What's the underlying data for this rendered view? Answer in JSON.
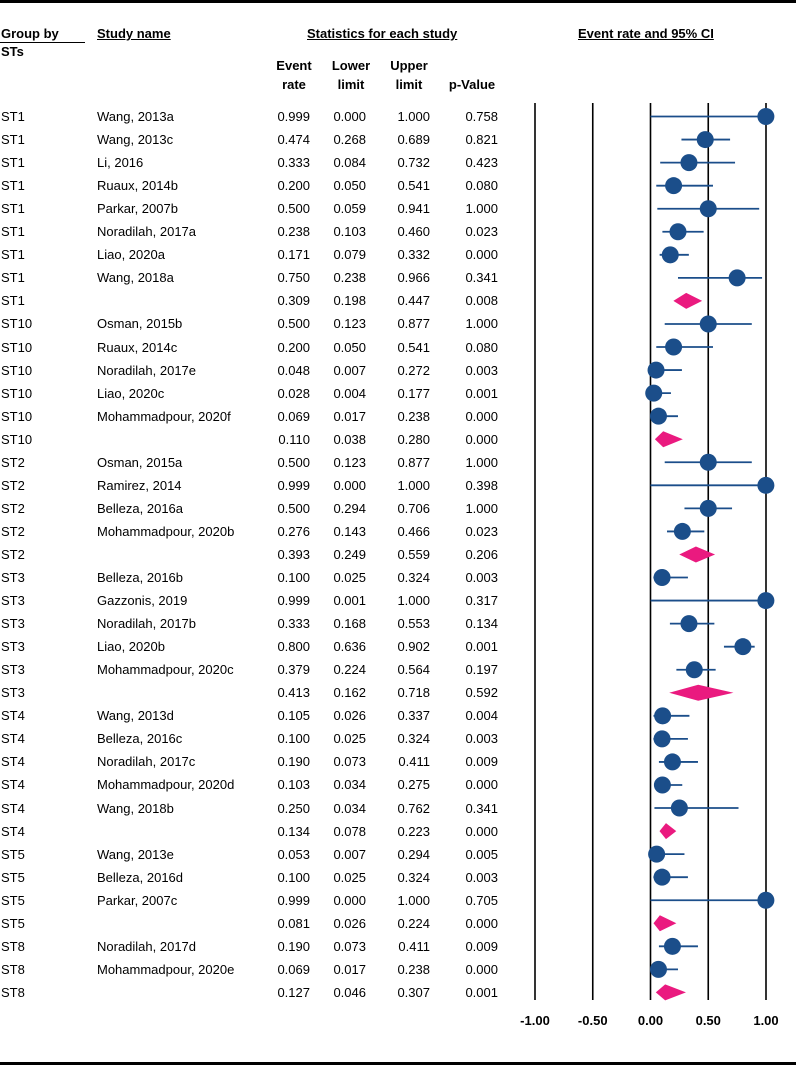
{
  "headers": {
    "group_by": "Group by",
    "group_by_2": "STs",
    "study_name": "Study name",
    "stats_group": "Statistics for each study",
    "plot_title": "Event rate and 95% CI",
    "col_event_1": "Event",
    "col_event_2": "rate",
    "col_lower_1": "Lower",
    "col_lower_2": "limit",
    "col_upper_1": "Upper",
    "col_upper_2": "limit",
    "col_p": "p-Value"
  },
  "chart_data": {
    "type": "forest",
    "title": "Event rate and 95% CI",
    "x_ticks": [
      "-1.00",
      "-0.50",
      "0.00",
      "0.50",
      "1.00"
    ],
    "xlim": [
      -1.0,
      1.0
    ],
    "vertical_lines_at": [
      -1.0,
      -0.5,
      0.0,
      0.5,
      1.0
    ],
    "colors": {
      "study_marker": "#1b4e8a",
      "summary_diamond": "#ea1a7f",
      "ci_line": "#1b4e8a"
    },
    "rows": [
      {
        "group": "ST1",
        "study": "Wang, 2013a",
        "rate": "0.999",
        "lower": "0.000",
        "upper": "1.000",
        "p": "0.758",
        "summary": false
      },
      {
        "group": "ST1",
        "study": "Wang, 2013c",
        "rate": "0.474",
        "lower": "0.268",
        "upper": "0.689",
        "p": "0.821",
        "summary": false
      },
      {
        "group": "ST1",
        "study": "Li, 2016",
        "rate": "0.333",
        "lower": "0.084",
        "upper": "0.732",
        "p": "0.423",
        "summary": false
      },
      {
        "group": "ST1",
        "study": "Ruaux, 2014b",
        "rate": "0.200",
        "lower": "0.050",
        "upper": "0.541",
        "p": "0.080",
        "summary": false
      },
      {
        "group": "ST1",
        "study": "Parkar, 2007b",
        "rate": "0.500",
        "lower": "0.059",
        "upper": "0.941",
        "p": "1.000",
        "summary": false
      },
      {
        "group": "ST1",
        "study": "Noradilah, 2017a",
        "rate": "0.238",
        "lower": "0.103",
        "upper": "0.460",
        "p": "0.023",
        "summary": false
      },
      {
        "group": "ST1",
        "study": "Liao, 2020a",
        "rate": "0.171",
        "lower": "0.079",
        "upper": "0.332",
        "p": "0.000",
        "summary": false
      },
      {
        "group": "ST1",
        "study": "Wang, 2018a",
        "rate": "0.750",
        "lower": "0.238",
        "upper": "0.966",
        "p": "0.341",
        "summary": false
      },
      {
        "group": "ST1",
        "study": "",
        "rate": "0.309",
        "lower": "0.198",
        "upper": "0.447",
        "p": "0.008",
        "summary": true
      },
      {
        "group": "ST10",
        "study": "Osman, 2015b",
        "rate": "0.500",
        "lower": "0.123",
        "upper": "0.877",
        "p": "1.000",
        "summary": false
      },
      {
        "group": "ST10",
        "study": "Ruaux, 2014c",
        "rate": "0.200",
        "lower": "0.050",
        "upper": "0.541",
        "p": "0.080",
        "summary": false
      },
      {
        "group": "ST10",
        "study": "Noradilah, 2017e",
        "rate": "0.048",
        "lower": "0.007",
        "upper": "0.272",
        "p": "0.003",
        "summary": false
      },
      {
        "group": "ST10",
        "study": "Liao, 2020c",
        "rate": "0.028",
        "lower": "0.004",
        "upper": "0.177",
        "p": "0.001",
        "summary": false
      },
      {
        "group": "ST10",
        "study": "Mohammadpour, 2020f",
        "rate": "0.069",
        "lower": "0.017",
        "upper": "0.238",
        "p": "0.000",
        "summary": false
      },
      {
        "group": "ST10",
        "study": "",
        "rate": "0.110",
        "lower": "0.038",
        "upper": "0.280",
        "p": "0.000",
        "summary": true
      },
      {
        "group": "ST2",
        "study": "Osman, 2015a",
        "rate": "0.500",
        "lower": "0.123",
        "upper": "0.877",
        "p": "1.000",
        "summary": false
      },
      {
        "group": "ST2",
        "study": "Ramirez, 2014",
        "rate": "0.999",
        "lower": "0.000",
        "upper": "1.000",
        "p": "0.398",
        "summary": false
      },
      {
        "group": "ST2",
        "study": "Belleza, 2016a",
        "rate": "0.500",
        "lower": "0.294",
        "upper": "0.706",
        "p": "1.000",
        "summary": false
      },
      {
        "group": "ST2",
        "study": "Mohammadpour, 2020b",
        "rate": "0.276",
        "lower": "0.143",
        "upper": "0.466",
        "p": "0.023",
        "summary": false
      },
      {
        "group": "ST2",
        "study": "",
        "rate": "0.393",
        "lower": "0.249",
        "upper": "0.559",
        "p": "0.206",
        "summary": true
      },
      {
        "group": "ST3",
        "study": "Belleza, 2016b",
        "rate": "0.100",
        "lower": "0.025",
        "upper": "0.324",
        "p": "0.003",
        "summary": false
      },
      {
        "group": "ST3",
        "study": "Gazzonis, 2019",
        "rate": "0.999",
        "lower": "0.001",
        "upper": "1.000",
        "p": "0.317",
        "summary": false
      },
      {
        "group": "ST3",
        "study": "Noradilah, 2017b",
        "rate": "0.333",
        "lower": "0.168",
        "upper": "0.553",
        "p": "0.134",
        "summary": false
      },
      {
        "group": "ST3",
        "study": "Liao, 2020b",
        "rate": "0.800",
        "lower": "0.636",
        "upper": "0.902",
        "p": "0.001",
        "summary": false
      },
      {
        "group": "ST3",
        "study": "Mohammadpour, 2020c",
        "rate": "0.379",
        "lower": "0.224",
        "upper": "0.564",
        "p": "0.197",
        "summary": false
      },
      {
        "group": "ST3",
        "study": "",
        "rate": "0.413",
        "lower": "0.162",
        "upper": "0.718",
        "p": "0.592",
        "summary": true
      },
      {
        "group": "ST4",
        "study": "Wang, 2013d",
        "rate": "0.105",
        "lower": "0.026",
        "upper": "0.337",
        "p": "0.004",
        "summary": false
      },
      {
        "group": "ST4",
        "study": "Belleza, 2016c",
        "rate": "0.100",
        "lower": "0.025",
        "upper": "0.324",
        "p": "0.003",
        "summary": false
      },
      {
        "group": "ST4",
        "study": "Noradilah, 2017c",
        "rate": "0.190",
        "lower": "0.073",
        "upper": "0.411",
        "p": "0.009",
        "summary": false
      },
      {
        "group": "ST4",
        "study": "Mohammadpour, 2020d",
        "rate": "0.103",
        "lower": "0.034",
        "upper": "0.275",
        "p": "0.000",
        "summary": false
      },
      {
        "group": "ST4",
        "study": "Wang, 2018b",
        "rate": "0.250",
        "lower": "0.034",
        "upper": "0.762",
        "p": "0.341",
        "summary": false
      },
      {
        "group": "ST4",
        "study": "",
        "rate": "0.134",
        "lower": "0.078",
        "upper": "0.223",
        "p": "0.000",
        "summary": true
      },
      {
        "group": "ST5",
        "study": "Wang, 2013e",
        "rate": "0.053",
        "lower": "0.007",
        "upper": "0.294",
        "p": "0.005",
        "summary": false
      },
      {
        "group": "ST5",
        "study": "Belleza, 2016d",
        "rate": "0.100",
        "lower": "0.025",
        "upper": "0.324",
        "p": "0.003",
        "summary": false
      },
      {
        "group": "ST5",
        "study": "Parkar, 2007c",
        "rate": "0.999",
        "lower": "0.000",
        "upper": "1.000",
        "p": "0.705",
        "summary": false
      },
      {
        "group": "ST5",
        "study": "",
        "rate": "0.081",
        "lower": "0.026",
        "upper": "0.224",
        "p": "0.000",
        "summary": true
      },
      {
        "group": "ST8",
        "study": "Noradilah, 2017d",
        "rate": "0.190",
        "lower": "0.073",
        "upper": "0.411",
        "p": "0.009",
        "summary": false
      },
      {
        "group": "ST8",
        "study": "Mohammadpour, 2020e",
        "rate": "0.069",
        "lower": "0.017",
        "upper": "0.238",
        "p": "0.000",
        "summary": false
      },
      {
        "group": "ST8",
        "study": "",
        "rate": "0.127",
        "lower": "0.046",
        "upper": "0.307",
        "p": "0.001",
        "summary": true
      }
    ]
  }
}
